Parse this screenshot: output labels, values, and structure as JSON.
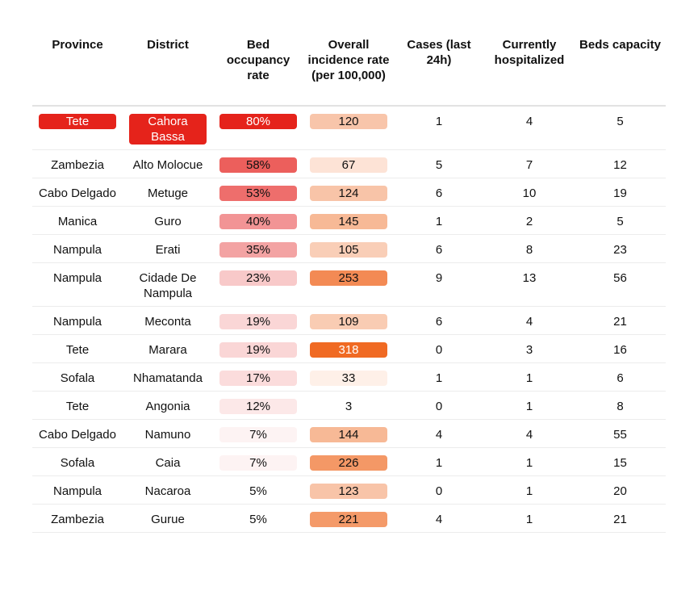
{
  "chart_data": {
    "type": "table",
    "columns": [
      "Province",
      "District",
      "Bed occupancy rate",
      "Overall incidence rate (per 100,000)",
      "Cases (last 24h)",
      "Currently hospitalized",
      "Beds capacity"
    ],
    "rows": [
      {
        "province": "Tete",
        "district": "Cahora Bassa",
        "bed_occupancy": "80%",
        "occ_color": "#e5231b",
        "occ_text": "#ffffff",
        "incidence": "120",
        "inc_color": "#f8c5aa",
        "inc_text": "#111111",
        "cases": "1",
        "hospitalized": "4",
        "beds": "5",
        "prov_color": "#e5231b",
        "prov_text": "#ffffff",
        "dist_color": "#e5231b",
        "dist_text": "#ffffff"
      },
      {
        "province": "Zambezia",
        "district": "Alto Molocue",
        "bed_occupancy": "58%",
        "occ_color": "#ec5f5c",
        "occ_text": "#111111",
        "incidence": "67",
        "inc_color": "#fde3d6",
        "inc_text": "#111111",
        "cases": "5",
        "hospitalized": "7",
        "beds": "12"
      },
      {
        "province": "Cabo Delgado",
        "district": "Metuge",
        "bed_occupancy": "53%",
        "occ_color": "#ee6e6c",
        "occ_text": "#111111",
        "incidence": "124",
        "inc_color": "#f8c4a8",
        "inc_text": "#111111",
        "cases": "6",
        "hospitalized": "10",
        "beds": "19"
      },
      {
        "province": "Manica",
        "district": "Guro",
        "bed_occupancy": "40%",
        "occ_color": "#f29495",
        "occ_text": "#111111",
        "incidence": "145",
        "inc_color": "#f7b996",
        "inc_text": "#111111",
        "cases": "1",
        "hospitalized": "2",
        "beds": "5"
      },
      {
        "province": "Nampula",
        "district": "Erati",
        "bed_occupancy": "35%",
        "occ_color": "#f3a3a3",
        "occ_text": "#111111",
        "incidence": "105",
        "inc_color": "#f9ceb7",
        "inc_text": "#111111",
        "cases": "6",
        "hospitalized": "8",
        "beds": "23"
      },
      {
        "province": "Nampula",
        "district": "Cidade De Nampula",
        "bed_occupancy": "23%",
        "occ_color": "#f8c9c9",
        "occ_text": "#111111",
        "incidence": "253",
        "inc_color": "#f38a54",
        "inc_text": "#111111",
        "cases": "9",
        "hospitalized": "13",
        "beds": "56"
      },
      {
        "province": "Nampula",
        "district": "Meconta",
        "bed_occupancy": "19%",
        "occ_color": "#fad6d6",
        "occ_text": "#111111",
        "incidence": "109",
        "inc_color": "#f9ccb3",
        "inc_text": "#111111",
        "cases": "6",
        "hospitalized": "4",
        "beds": "21"
      },
      {
        "province": "Tete",
        "district": "Marara",
        "bed_occupancy": "19%",
        "occ_color": "#fad6d6",
        "occ_text": "#111111",
        "incidence": "318",
        "inc_color": "#f06a23",
        "inc_text": "#ffffff",
        "cases": "0",
        "hospitalized": "3",
        "beds": "16"
      },
      {
        "province": "Sofala",
        "district": "Nhamatanda",
        "bed_occupancy": "17%",
        "occ_color": "#fbdcdc",
        "occ_text": "#111111",
        "incidence": "33",
        "inc_color": "#fef0e8",
        "inc_text": "#111111",
        "cases": "1",
        "hospitalized": "1",
        "beds": "6"
      },
      {
        "province": "Tete",
        "district": "Angonia",
        "bed_occupancy": "12%",
        "occ_color": "#fce8e8",
        "occ_text": "#111111",
        "incidence": "3",
        "inc_color": "#ffffff",
        "inc_text": "#111111",
        "cases": "0",
        "hospitalized": "1",
        "beds": "8"
      },
      {
        "province": "Cabo Delgado",
        "district": "Namuno",
        "bed_occupancy": "7%",
        "occ_color": "#fdf3f3",
        "occ_text": "#111111",
        "incidence": "144",
        "inc_color": "#f7b996",
        "inc_text": "#111111",
        "cases": "4",
        "hospitalized": "4",
        "beds": "55"
      },
      {
        "province": "Sofala",
        "district": "Caia",
        "bed_occupancy": "7%",
        "occ_color": "#fdf3f3",
        "occ_text": "#111111",
        "incidence": "226",
        "inc_color": "#f49866",
        "inc_text": "#111111",
        "cases": "1",
        "hospitalized": "1",
        "beds": "15"
      },
      {
        "province": "Nampula",
        "district": "Nacaroa",
        "bed_occupancy": "5%",
        "occ_color": "#ffffff",
        "occ_text": "#111111",
        "incidence": "123",
        "inc_color": "#f8c4a8",
        "inc_text": "#111111",
        "cases": "0",
        "hospitalized": "1",
        "beds": "20"
      },
      {
        "province": "Zambezia",
        "district": "Gurue",
        "bed_occupancy": "5%",
        "occ_color": "#ffffff",
        "occ_text": "#111111",
        "incidence": "221",
        "inc_color": "#f49a69",
        "inc_text": "#111111",
        "cases": "4",
        "hospitalized": "1",
        "beds": "21"
      }
    ]
  }
}
